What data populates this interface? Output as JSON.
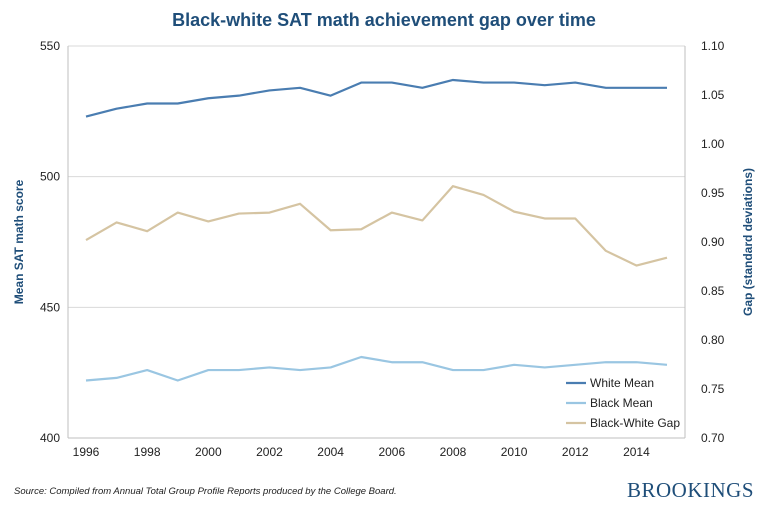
{
  "chart_data": {
    "type": "line",
    "title": "Black-white SAT math achievement gap over time",
    "ylabel": "Mean SAT math score",
    "y2label": "Gap (standard deviations)",
    "ylim": [
      400,
      550
    ],
    "y2lim": [
      0.7,
      1.1
    ],
    "yticks": [
      400,
      450,
      500,
      550
    ],
    "y2ticks": [
      "0.70",
      "0.75",
      "0.80",
      "0.85",
      "0.90",
      "0.95",
      "1.00",
      "1.05",
      "1.10"
    ],
    "xticks": [
      1996,
      1998,
      2000,
      2002,
      2004,
      2006,
      2008,
      2010,
      2012,
      2014
    ],
    "x": [
      1996,
      1997,
      1998,
      1999,
      2000,
      2001,
      2002,
      2003,
      2004,
      2005,
      2006,
      2007,
      2008,
      2009,
      2010,
      2011,
      2012,
      2013,
      2014,
      2015
    ],
    "grid": "horizontal",
    "legend": "bottom-right",
    "series": [
      {
        "name": "White Mean",
        "axis": "left",
        "color": "#4a7db1",
        "values": [
          523,
          526,
          528,
          528,
          530,
          531,
          533,
          534,
          531,
          536,
          536,
          534,
          537,
          536,
          536,
          535,
          536,
          534,
          534,
          534
        ]
      },
      {
        "name": "Black Mean",
        "axis": "left",
        "color": "#9ac6e2",
        "values": [
          422,
          423,
          426,
          422,
          426,
          426,
          427,
          426,
          427,
          431,
          429,
          429,
          426,
          426,
          428,
          427,
          428,
          429,
          429,
          428
        ]
      },
      {
        "name": "Black-White Gap",
        "axis": "right",
        "color": "#d5c4a2",
        "values": [
          0.902,
          0.92,
          0.911,
          0.93,
          0.921,
          0.929,
          0.93,
          0.939,
          0.912,
          0.913,
          0.93,
          0.922,
          0.957,
          0.948,
          0.931,
          0.924,
          0.924,
          0.891,
          0.876,
          0.884
        ]
      }
    ]
  },
  "footer": {
    "source": "Source: Compiled from Annual Total Group Profile Reports produced by the College Board.",
    "logo": "BROOKINGS"
  }
}
